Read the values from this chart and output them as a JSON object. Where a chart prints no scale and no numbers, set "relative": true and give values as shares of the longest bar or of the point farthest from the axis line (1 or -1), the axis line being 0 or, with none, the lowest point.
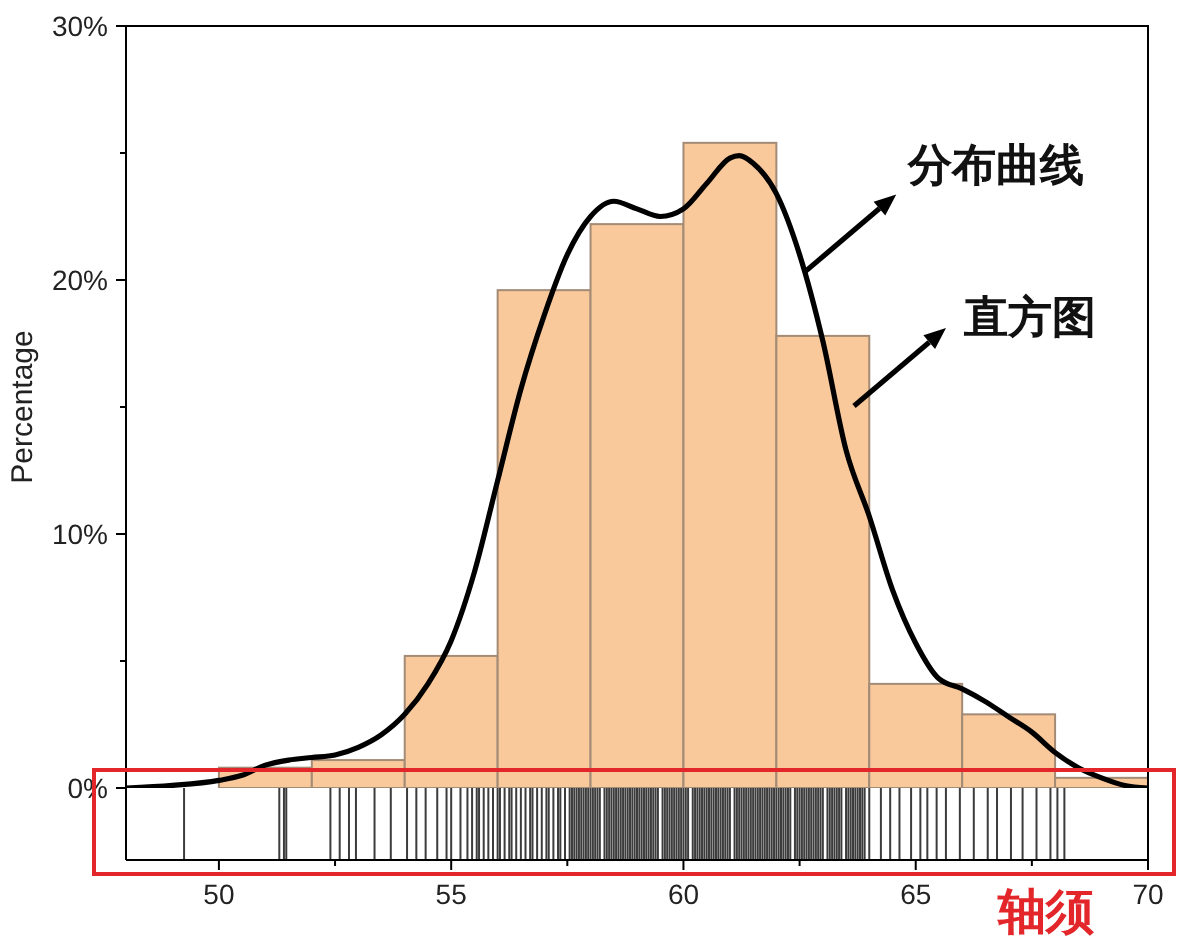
{
  "chart_data": [
    {
      "type": "histogram",
      "ylabel": "Percentage",
      "bins": [
        50,
        52,
        54,
        56,
        58,
        60,
        62,
        64,
        66,
        68,
        70
      ],
      "series": [
        {
          "color": "#f9c89b",
          "values": [
            0.8,
            1.1,
            5.2,
            19.6,
            22.2,
            25.4,
            17.8,
            4.1,
            2.9,
            0.4
          ]
        },
        {
          "type": "line",
          "color": "#000000",
          "x": [
            48,
            49,
            50,
            50.5,
            51,
            51.5,
            52,
            52.5,
            53,
            53.5,
            54,
            54.5,
            55,
            55.5,
            56,
            56.5,
            57,
            57.5,
            58,
            58.5,
            59,
            59.5,
            60,
            60.5,
            61,
            61.2,
            61.5,
            62,
            62.5,
            63,
            63.5,
            64,
            64.5,
            65,
            65.5,
            66,
            66.5,
            67,
            67.5,
            68,
            68.5,
            69,
            69.5,
            70
          ],
          "values": [
            0.0,
            0.1,
            0.3,
            0.5,
            0.9,
            1.1,
            1.2,
            1.3,
            1.6,
            2.1,
            2.9,
            4.1,
            5.8,
            8.5,
            12.1,
            15.7,
            18.6,
            21.0,
            22.5,
            23.1,
            22.8,
            22.5,
            22.8,
            23.8,
            24.8,
            24.9,
            24.6,
            23.4,
            21.0,
            17.6,
            13.3,
            10.7,
            7.8,
            5.7,
            4.3,
            3.9,
            3.4,
            2.8,
            2.2,
            1.4,
            0.8,
            0.4,
            0.1,
            0.0
          ]
        }
      ],
      "xlim": [
        48,
        70
      ],
      "ylim": [
        0,
        30
      ],
      "yticks": [
        {
          "value": 0,
          "label": "0%"
        },
        {
          "value": 5,
          "label": null
        },
        {
          "value": 10,
          "label": "10%"
        },
        {
          "value": 15,
          "label": null
        },
        {
          "value": 20,
          "label": "20%"
        },
        {
          "value": 25,
          "label": null
        },
        {
          "value": 30,
          "label": "30%"
        }
      ],
      "tick_labels": "y",
      "annotations": [
        {
          "text": "分布曲线",
          "x": 62.6,
          "y": 20.3
        },
        "直方图"
      ]
    },
    {
      "type": "bar",
      "relative": true,
      "color": "#3c3c3c",
      "x": [
        49.25,
        51.3,
        51.4,
        51.45,
        52.4,
        52.6,
        52.8,
        52.95,
        53.35,
        53.7,
        54.05,
        54.25,
        54.45,
        54.7,
        54.9,
        55.0,
        55.2,
        55.35,
        55.45,
        55.55,
        55.6,
        55.7,
        55.8,
        55.9,
        56.0,
        56.05,
        56.15,
        56.25,
        56.3,
        56.4,
        56.5,
        56.6,
        56.7,
        56.75,
        56.85,
        56.95,
        57.05,
        57.1,
        57.2,
        57.3,
        57.35,
        57.45,
        57.55,
        57.6,
        57.65,
        57.7,
        57.75,
        57.8,
        57.85,
        57.9,
        57.95,
        58.0,
        58.05,
        58.1,
        58.15,
        58.2,
        58.3,
        58.35,
        58.4,
        58.45,
        58.5,
        58.55,
        58.6,
        58.65,
        58.7,
        58.75,
        58.8,
        58.85,
        58.9,
        58.95,
        59.0,
        59.05,
        59.1,
        59.15,
        59.2,
        59.25,
        59.3,
        59.35,
        59.4,
        59.45,
        59.55,
        59.6,
        59.65,
        59.7,
        59.75,
        59.8,
        59.85,
        59.9,
        59.95,
        60.0,
        60.05,
        60.1,
        60.2,
        60.25,
        60.3,
        60.35,
        60.4,
        60.45,
        60.5,
        60.55,
        60.6,
        60.65,
        60.7,
        60.75,
        60.8,
        60.85,
        60.9,
        60.95,
        61.0,
        61.1,
        61.15,
        61.2,
        61.25,
        61.3,
        61.35,
        61.4,
        61.45,
        61.5,
        61.55,
        61.6,
        61.65,
        61.7,
        61.75,
        61.8,
        61.85,
        61.9,
        61.95,
        62.0,
        62.05,
        62.1,
        62.15,
        62.2,
        62.25,
        62.3,
        62.4,
        62.45,
        62.5,
        62.55,
        62.6,
        62.65,
        62.7,
        62.75,
        62.8,
        62.85,
        62.9,
        62.95,
        63.0,
        63.1,
        63.15,
        63.2,
        63.25,
        63.3,
        63.35,
        63.4,
        63.5,
        63.55,
        63.6,
        63.65,
        63.7,
        63.75,
        63.8,
        63.85,
        63.9,
        64.0,
        64.25,
        64.45,
        64.65,
        64.9,
        65.1,
        65.25,
        65.45,
        65.65,
        65.95,
        66.25,
        66.55,
        66.75,
        67.05,
        67.3,
        67.6,
        67.9,
        68.05,
        68.2
      ],
      "values": [
        1,
        1,
        1,
        1,
        1,
        1,
        1,
        1,
        1,
        1,
        1,
        1,
        1,
        1,
        1,
        1,
        1,
        1,
        1,
        1,
        1,
        1,
        1,
        1,
        1,
        1,
        1,
        1,
        1,
        1,
        1,
        1,
        1,
        1,
        1,
        1,
        1,
        1,
        1,
        1,
        1,
        1,
        1,
        1,
        1,
        1,
        1,
        1,
        1,
        1,
        1,
        1,
        1,
        1,
        1,
        1,
        1,
        1,
        1,
        1,
        1,
        1,
        1,
        1,
        1,
        1,
        1,
        1,
        1,
        1,
        1,
        1,
        1,
        1,
        1,
        1,
        1,
        1,
        1,
        1,
        1,
        1,
        1,
        1,
        1,
        1,
        1,
        1,
        1,
        1,
        1,
        1,
        1,
        1,
        1,
        1,
        1,
        1,
        1,
        1,
        1,
        1,
        1,
        1,
        1,
        1,
        1,
        1,
        1,
        1,
        1,
        1,
        1,
        1,
        1,
        1,
        1,
        1,
        1,
        1,
        1,
        1,
        1,
        1,
        1,
        1,
        1,
        1,
        1,
        1,
        1,
        1,
        1,
        1,
        1,
        1,
        1,
        1,
        1,
        1,
        1,
        1,
        1,
        1,
        1,
        1,
        1,
        1,
        1,
        1,
        1,
        1,
        1,
        1,
        1,
        1,
        1,
        1,
        1,
        1,
        1,
        1,
        1,
        1,
        1,
        1,
        1,
        1,
        1,
        1,
        1,
        1,
        1,
        1,
        1,
        1,
        1,
        1,
        1,
        1,
        1,
        1
      ],
      "xlim": [
        48,
        70
      ],
      "xticks": [
        50,
        {
          "value": 52.5,
          "label": null
        },
        55,
        {
          "value": 57.5,
          "label": null
        },
        60,
        {
          "value": 62.5,
          "label": null
        },
        65,
        {
          "value": 67.5,
          "label": null
        },
        70
      ],
      "annotations": [
        "轴须"
      ]
    }
  ]
}
